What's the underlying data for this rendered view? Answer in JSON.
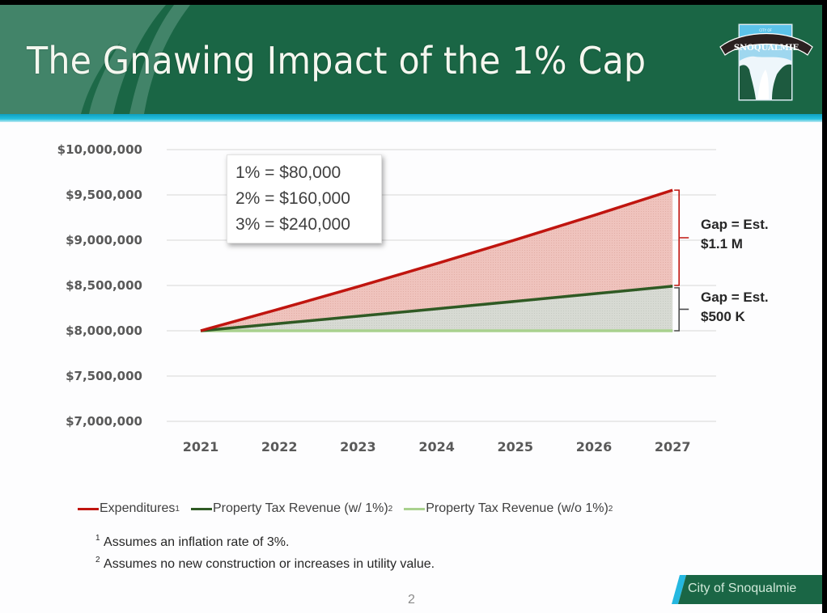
{
  "slide": {
    "title": "The Gnawing Impact of the 1% Cap",
    "logo_text": "SNOQUALMIE",
    "logo_top_text": "CITY OF",
    "page_number": "2",
    "footer_label": "City of Snoqualmie"
  },
  "colors": {
    "header_green": "#1a6645",
    "teal_band": "#25c0dd",
    "expenditures": "#c0150f",
    "revenue_with_cap": "#2f5a24",
    "revenue_without_cap": "#a9d18e",
    "gap_fill_red": "#efc3bd",
    "gap_fill_gray": "#d5d8d1"
  },
  "notes": {
    "rate_box": [
      "1% = $80,000",
      "2% = $160,000",
      "3% = $240,000"
    ],
    "gap_upper": [
      "Gap = Est.",
      "$1.1 M"
    ],
    "gap_lower": [
      "Gap = Est.",
      "$500 K"
    ]
  },
  "footnotes": [
    {
      "mark": "1",
      "text": "Assumes an inflation rate of 3%."
    },
    {
      "mark": "2",
      "text": "Assumes no new construction or increases in utility value."
    }
  ],
  "chart_data": {
    "type": "area",
    "title": "",
    "xlabel": "",
    "ylabel": "",
    "categories": [
      "2021",
      "2022",
      "2023",
      "2024",
      "2025",
      "2026",
      "2027"
    ],
    "ylim": [
      7000000,
      10000000
    ],
    "yticks": [
      7000000,
      7500000,
      8000000,
      8500000,
      9000000,
      9500000,
      10000000
    ],
    "ytick_labels": [
      "$7,000,000",
      "$7,500,000",
      "$8,000,000",
      "$8,500,000",
      "$9,000,000",
      "$9,500,000",
      "$10,000,000"
    ],
    "grid": true,
    "legend_position": "bottom",
    "series": [
      {
        "name": "Expenditures",
        "superscript": "1",
        "color_key": "expenditures",
        "values": [
          8000000,
          8240000,
          8487200,
          8741816,
          9004070,
          9274193,
          9552418
        ]
      },
      {
        "name": "Property Tax Revenue (w/ 1%)",
        "superscript": "2",
        "color_key": "revenue_with_cap",
        "values": [
          8000000,
          8080000,
          8160800,
          8242408,
          8324832,
          8408080,
          8492161
        ]
      },
      {
        "name": "Property Tax Revenue (w/o 1%)",
        "superscript": "2",
        "color_key": "revenue_without_cap",
        "values": [
          8000000,
          8000000,
          8000000,
          8000000,
          8000000,
          8000000,
          8000000
        ]
      }
    ]
  }
}
